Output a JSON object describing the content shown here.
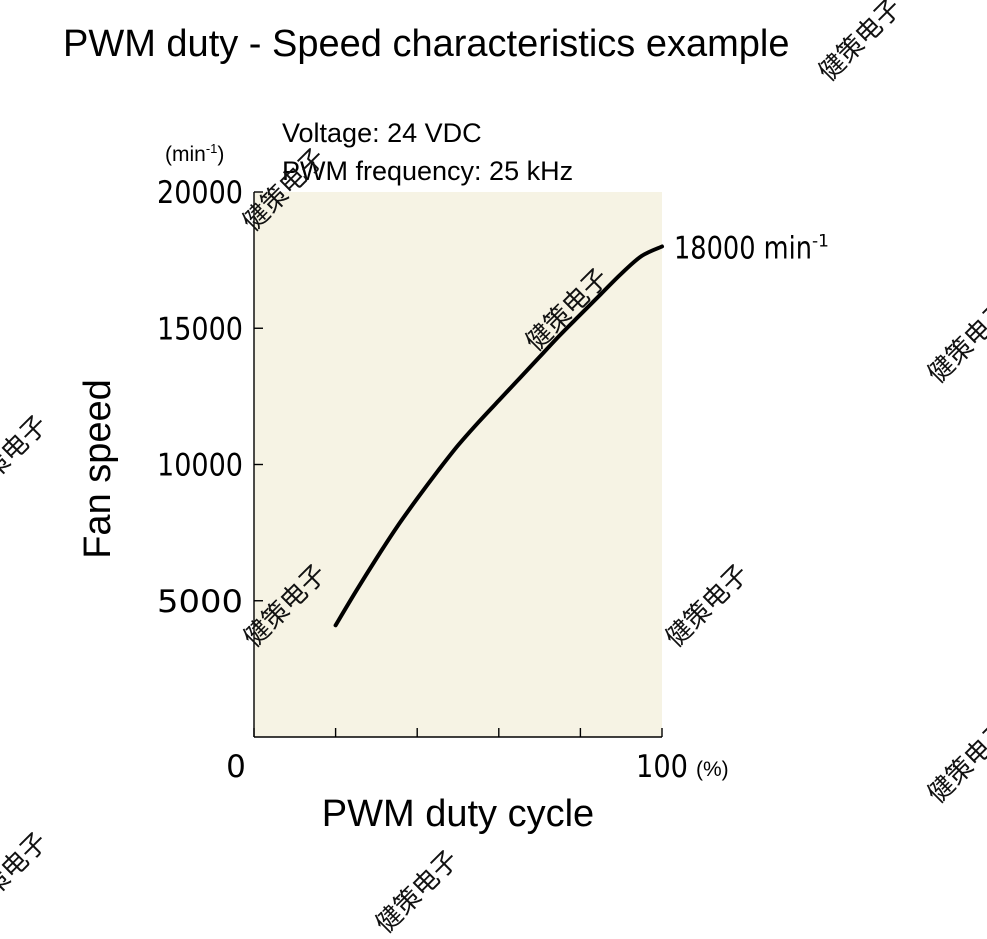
{
  "chart_data": {
    "type": "line",
    "title": "PWM duty - Speed characteristics example",
    "conditions": [
      "Voltage: 24 VDC",
      "PWM frequency: 25 kHz"
    ],
    "xlabel": "PWM duty cycle",
    "x_unit": "(%)",
    "ylabel": "Fan speed",
    "y_unit": {
      "base": "(min",
      "sup": "-1",
      "close": ")"
    },
    "xlim": [
      0,
      100
    ],
    "ylim": [
      0,
      20000
    ],
    "x_ticks": [
      0,
      20,
      40,
      60,
      80,
      100
    ],
    "x_tick_labels": [
      {
        "x": 0,
        "label": "0"
      },
      {
        "x": 100,
        "label": "100"
      }
    ],
    "y_ticks": [
      5000,
      10000,
      15000,
      20000
    ],
    "y_tick_labels": [
      "5000",
      "10000",
      "15000",
      "20000"
    ],
    "series": [
      {
        "x": [
          20,
          25,
          30,
          35,
          40,
          45,
          50,
          55,
          60,
          65,
          70,
          75,
          80,
          85,
          90,
          95,
          100
        ],
        "y": [
          4100,
          5350,
          6550,
          7700,
          8750,
          9750,
          10700,
          11550,
          12350,
          13150,
          13950,
          14750,
          15500,
          16250,
          17000,
          17650,
          18000
        ]
      }
    ],
    "annotation": {
      "text": "18000 min",
      "sup": "-1",
      "x": 100,
      "y": 18000
    },
    "plot_background": "#f6f3e4",
    "line_color": "#000000",
    "grid": false
  },
  "watermark_text": "健策电子"
}
